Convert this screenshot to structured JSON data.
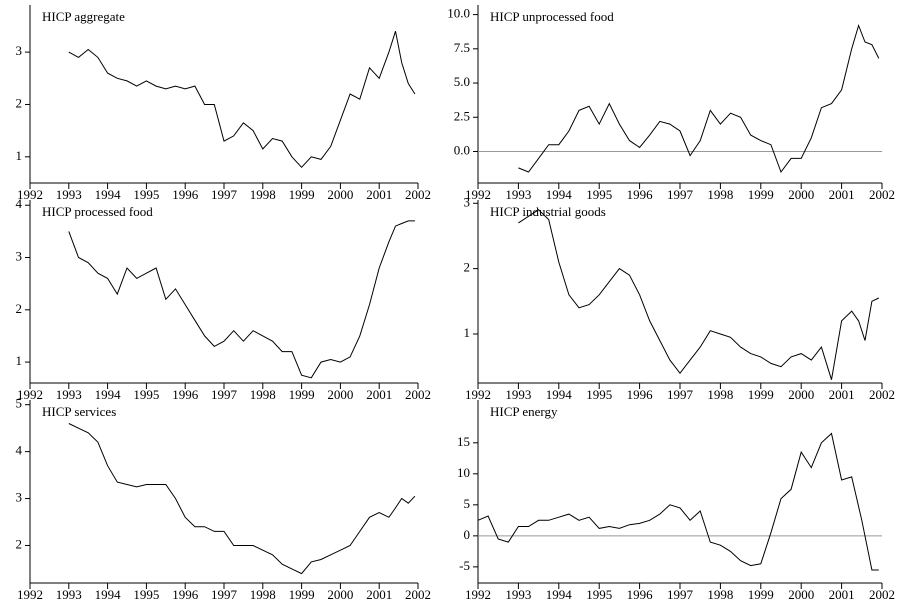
{
  "chart_data": [
    {
      "type": "line",
      "title": "HICP aggregate",
      "x": [
        1993,
        1993.25,
        1993.5,
        1993.75,
        1994,
        1994.25,
        1994.5,
        1994.75,
        1995,
        1995.25,
        1995.5,
        1995.75,
        1996,
        1996.25,
        1996.5,
        1996.75,
        1997,
        1997.25,
        1997.5,
        1997.75,
        1998,
        1998.25,
        1998.5,
        1998.75,
        1999,
        1999.25,
        1999.5,
        1999.75,
        2000,
        2000.25,
        2000.5,
        2000.75,
        2001,
        2001.25,
        2001.42,
        2001.58,
        2001.75,
        2001.92
      ],
      "series": [
        {
          "color": "#000000",
          "values": [
            3.0,
            2.9,
            3.05,
            2.9,
            2.6,
            2.5,
            2.45,
            2.35,
            2.45,
            2.35,
            2.3,
            2.35,
            2.3,
            2.35,
            2.0,
            2.0,
            1.3,
            1.4,
            1.65,
            1.5,
            1.15,
            1.35,
            1.3,
            1.0,
            0.8,
            1.0,
            0.95,
            1.2,
            1.7,
            2.2,
            2.1,
            2.7,
            2.5,
            3.0,
            3.4,
            2.8,
            2.4,
            2.2
          ]
        }
      ],
      "xlim": [
        1992,
        2002
      ],
      "xticks": [
        1992,
        1993,
        1994,
        1995,
        1996,
        1997,
        1998,
        1999,
        2000,
        2001,
        2002
      ],
      "ylim": [
        0.5,
        3.9
      ],
      "yticks": [
        1,
        2,
        3
      ],
      "zero_line": false
    },
    {
      "type": "line",
      "title": "HICP unprocessed food",
      "x": [
        1993,
        1993.25,
        1993.5,
        1993.75,
        1994,
        1994.25,
        1994.5,
        1994.75,
        1995,
        1995.25,
        1995.5,
        1995.75,
        1996,
        1996.25,
        1996.5,
        1996.75,
        1997,
        1997.25,
        1997.5,
        1997.75,
        1998,
        1998.25,
        1998.5,
        1998.75,
        1999,
        1999.25,
        1999.5,
        1999.75,
        2000,
        2000.25,
        2000.5,
        2000.75,
        2001,
        2001.25,
        2001.42,
        2001.58,
        2001.75,
        2001.92
      ],
      "series": [
        {
          "color": "#000000",
          "values": [
            -1.2,
            -1.5,
            -0.5,
            0.5,
            0.5,
            1.5,
            3.0,
            3.3,
            2.0,
            3.5,
            2.0,
            0.8,
            0.3,
            1.2,
            2.2,
            2.0,
            1.5,
            -0.3,
            0.8,
            3.0,
            2.0,
            2.8,
            2.5,
            1.2,
            0.8,
            0.5,
            -1.5,
            -0.5,
            -0.5,
            1.0,
            3.2,
            3.5,
            4.5,
            7.5,
            9.2,
            8.0,
            7.8,
            6.8
          ]
        }
      ],
      "xlim": [
        1992,
        2002
      ],
      "xticks": [
        1992,
        1993,
        1994,
        1995,
        1996,
        1997,
        1998,
        1999,
        2000,
        2001,
        2002
      ],
      "ylim": [
        -2.3,
        10.7
      ],
      "yticks": [
        {
          "value": 0,
          "label": "0.0"
        },
        2.5,
        {
          "value": 5,
          "label": "5.0"
        },
        7.5,
        {
          "value": 10,
          "label": "10.0"
        }
      ],
      "zero_line": true
    },
    {
      "type": "line",
      "title": "HICP processed food",
      "x": [
        1993,
        1993.25,
        1993.5,
        1993.75,
        1994,
        1994.25,
        1994.5,
        1994.75,
        1995,
        1995.25,
        1995.5,
        1995.75,
        1996,
        1996.25,
        1996.5,
        1996.75,
        1997,
        1997.25,
        1997.5,
        1997.75,
        1998,
        1998.25,
        1998.5,
        1998.75,
        1999,
        1999.25,
        1999.5,
        1999.75,
        2000,
        2000.25,
        2000.5,
        2000.75,
        2001,
        2001.25,
        2001.42,
        2001.58,
        2001.75,
        2001.92
      ],
      "series": [
        {
          "color": "#000000",
          "values": [
            3.5,
            3.0,
            2.9,
            2.7,
            2.6,
            2.3,
            2.8,
            2.6,
            2.7,
            2.8,
            2.2,
            2.4,
            2.1,
            1.8,
            1.5,
            1.3,
            1.4,
            1.6,
            1.4,
            1.6,
            1.5,
            1.4,
            1.2,
            1.2,
            0.75,
            0.7,
            1.0,
            1.05,
            1.0,
            1.1,
            1.5,
            2.1,
            2.8,
            3.3,
            3.6,
            3.65,
            3.7,
            3.7
          ]
        }
      ],
      "xlim": [
        1992,
        2002
      ],
      "xticks": [
        1992,
        1993,
        1994,
        1995,
        1996,
        1997,
        1998,
        1999,
        2000,
        2001,
        2002
      ],
      "ylim": [
        0.6,
        4.1
      ],
      "yticks": [
        1,
        2,
        3,
        4
      ],
      "zero_line": false
    },
    {
      "type": "line",
      "title": "HICP industrial goods",
      "x": [
        1993,
        1993.25,
        1993.5,
        1993.75,
        1994,
        1994.25,
        1994.5,
        1994.75,
        1995,
        1995.25,
        1995.5,
        1995.75,
        1996,
        1996.25,
        1996.5,
        1996.75,
        1997,
        1997.25,
        1997.5,
        1997.75,
        1998,
        1998.25,
        1998.5,
        1998.75,
        1999,
        1999.25,
        1999.5,
        1999.75,
        2000,
        2000.25,
        2000.5,
        2000.75,
        2001,
        2001.25,
        2001.42,
        2001.58,
        2001.75,
        2001.92
      ],
      "series": [
        {
          "color": "#000000",
          "values": [
            2.7,
            2.8,
            2.9,
            2.75,
            2.1,
            1.6,
            1.4,
            1.45,
            1.6,
            1.8,
            2.0,
            1.9,
            1.6,
            1.2,
            0.9,
            0.6,
            0.4,
            0.6,
            0.8,
            1.05,
            1.0,
            0.95,
            0.8,
            0.7,
            0.65,
            0.55,
            0.5,
            0.65,
            0.7,
            0.6,
            0.8,
            0.3,
            1.2,
            1.35,
            1.2,
            0.9,
            1.5,
            1.55
          ]
        }
      ],
      "xlim": [
        1992,
        2002
      ],
      "xticks": [
        1992,
        1993,
        1994,
        1995,
        1996,
        1997,
        1998,
        1999,
        2000,
        2001,
        2002
      ],
      "ylim": [
        0.25,
        3.05
      ],
      "yticks": [
        1,
        2,
        3
      ],
      "zero_line": false
    },
    {
      "type": "line",
      "title": "HICP services",
      "x": [
        1993,
        1993.25,
        1993.5,
        1993.75,
        1994,
        1994.25,
        1994.5,
        1994.75,
        1995,
        1995.25,
        1995.5,
        1995.75,
        1996,
        1996.25,
        1996.5,
        1996.75,
        1997,
        1997.25,
        1997.5,
        1997.75,
        1998,
        1998.25,
        1998.5,
        1998.75,
        1999,
        1999.25,
        1999.5,
        1999.75,
        2000,
        2000.25,
        2000.5,
        2000.75,
        2001,
        2001.25,
        2001.42,
        2001.58,
        2001.75,
        2001.92
      ],
      "series": [
        {
          "color": "#000000",
          "values": [
            4.6,
            4.5,
            4.4,
            4.2,
            3.7,
            3.35,
            3.3,
            3.25,
            3.3,
            3.3,
            3.3,
            3.0,
            2.6,
            2.4,
            2.4,
            2.3,
            2.3,
            2.0,
            2.0,
            2.0,
            1.9,
            1.8,
            1.6,
            1.5,
            1.4,
            1.65,
            1.7,
            1.8,
            1.9,
            2.0,
            2.3,
            2.6,
            2.7,
            2.6,
            2.8,
            3.0,
            2.9,
            3.05
          ]
        }
      ],
      "xlim": [
        1992,
        2002
      ],
      "xticks": [
        1992,
        1993,
        1994,
        1995,
        1996,
        1997,
        1998,
        1999,
        2000,
        2001,
        2002
      ],
      "ylim": [
        1.2,
        5.1
      ],
      "yticks": [
        2,
        3,
        4,
        5
      ],
      "zero_line": false
    },
    {
      "type": "line",
      "title": "HICP energy",
      "x": [
        1992,
        1992.25,
        1992.5,
        1992.75,
        1993,
        1993.25,
        1993.5,
        1993.75,
        1994,
        1994.25,
        1994.5,
        1994.75,
        1995,
        1995.25,
        1995.5,
        1995.75,
        1996,
        1996.25,
        1996.5,
        1996.75,
        1997,
        1997.25,
        1997.5,
        1997.75,
        1998,
        1998.25,
        1998.5,
        1998.75,
        1999,
        1999.25,
        1999.5,
        1999.75,
        2000,
        2000.25,
        2000.5,
        2000.75,
        2001,
        2001.25,
        2001.5,
        2001.75,
        2001.92
      ],
      "series": [
        {
          "color": "#000000",
          "values": [
            2.5,
            3.2,
            -0.5,
            -1.0,
            1.5,
            1.5,
            2.5,
            2.5,
            3.0,
            3.5,
            2.5,
            3.0,
            1.2,
            1.5,
            1.2,
            1.8,
            2.0,
            2.5,
            3.5,
            5.0,
            4.5,
            2.5,
            4.0,
            -1.0,
            -1.5,
            -2.5,
            -4.0,
            -4.8,
            -4.5,
            0.5,
            6.0,
            7.5,
            13.5,
            11.0,
            15.0,
            16.5,
            9.0,
            9.5,
            2.5,
            -5.5,
            -5.5
          ]
        }
      ],
      "xlim": [
        1992,
        2002
      ],
      "xticks": [
        1992,
        1993,
        1994,
        1995,
        1996,
        1997,
        1998,
        1999,
        2000,
        2001,
        2002
      ],
      "ylim": [
        -7.6,
        21.9
      ],
      "yticks": [
        -5,
        0,
        5,
        10,
        15
      ],
      "zero_line": true
    }
  ]
}
